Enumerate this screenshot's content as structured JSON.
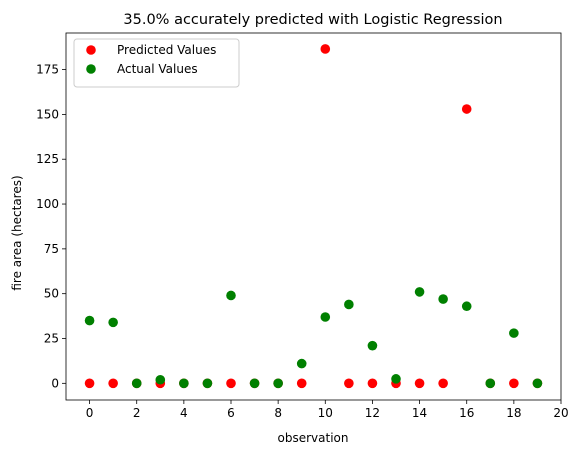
{
  "chart_data": {
    "type": "scatter",
    "title": "35.0% accurately predicted with Logistic Regression",
    "xlabel": "observation",
    "ylabel": "fire area (hectares)",
    "xlim": [
      -1,
      20
    ],
    "ylim": [
      -9.3,
      195.4
    ],
    "xticks": [
      0,
      2,
      4,
      6,
      8,
      10,
      12,
      14,
      16,
      18,
      20
    ],
    "yticks": [
      0,
      25,
      50,
      75,
      100,
      125,
      150,
      175
    ],
    "grid": false,
    "legend_position": "top-left",
    "series": [
      {
        "name": "Predicted Values",
        "color": "#ff0000",
        "x": [
          0,
          1,
          2,
          3,
          4,
          5,
          6,
          7,
          8,
          9,
          10,
          11,
          12,
          13,
          14,
          15,
          16,
          17,
          18,
          19
        ],
        "y": [
          0,
          0,
          0,
          0,
          0,
          0,
          0,
          0,
          0,
          0,
          186.5,
          0,
          0,
          0,
          0,
          0,
          153,
          0,
          0,
          0
        ]
      },
      {
        "name": "Actual Values",
        "color": "#008000",
        "x": [
          0,
          1,
          2,
          3,
          4,
          5,
          6,
          7,
          8,
          9,
          10,
          11,
          12,
          13,
          14,
          15,
          16,
          17,
          18,
          19
        ],
        "y": [
          35,
          34,
          0,
          2,
          0,
          0,
          49,
          0,
          0,
          11,
          37,
          44,
          21,
          2.5,
          51,
          47,
          43,
          0,
          28,
          0
        ]
      }
    ]
  }
}
